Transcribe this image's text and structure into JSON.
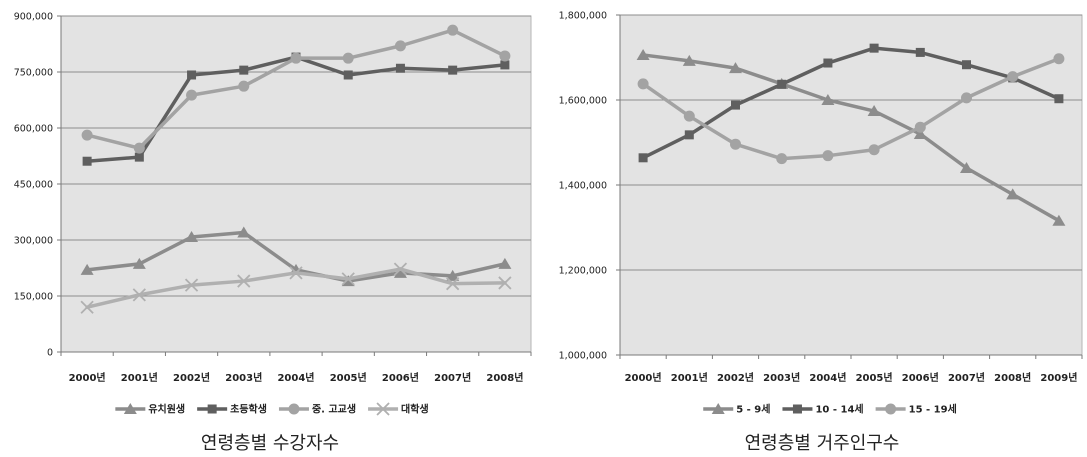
{
  "chart_data": [
    {
      "type": "line",
      "title": "연령층별 수강자수",
      "categories": [
        "2000년",
        "2001년",
        "2002년",
        "2003년",
        "2004년",
        "2005년",
        "2006년",
        "2007년",
        "2008년"
      ],
      "yticks": [
        "0",
        "150,000",
        "300,000",
        "450,000",
        "600,000",
        "750,000",
        "900,000"
      ],
      "ylim": [
        0,
        900000
      ],
      "grid": true,
      "legend": "bottom",
      "series": [
        {
          "name": "유치원생",
          "marker": "triangle",
          "color": "#8c8c8c",
          "values": [
            220000,
            236000,
            308000,
            320000,
            220000,
            190000,
            212000,
            204000,
            236000
          ]
        },
        {
          "name": "초등학생",
          "marker": "square",
          "color": "#5f5f5f",
          "values": [
            511000,
            522000,
            742000,
            755000,
            790000,
            742000,
            760000,
            755000,
            769000
          ]
        },
        {
          "name": "중. 고교생",
          "marker": "circle",
          "color": "#a3a3a3",
          "values": [
            581000,
            546000,
            688000,
            712000,
            787000,
            787000,
            820000,
            862000,
            793000
          ]
        },
        {
          "name": "대학생",
          "marker": "x",
          "color": "#b0b0b0",
          "values": [
            120000,
            153000,
            179000,
            190000,
            212000,
            196000,
            222000,
            183000,
            185000
          ]
        }
      ]
    },
    {
      "type": "line",
      "title": "연령층별 거주인구수",
      "categories": [
        "2000년",
        "2001년",
        "2002년",
        "2003년",
        "2004년",
        "2005년",
        "2006년",
        "2007년",
        "2008년",
        "2009년"
      ],
      "yticks": [
        "1,000,000",
        "1,200,000",
        "1,400,000",
        "1,600,000",
        "1,800,000"
      ],
      "ylim": [
        1000000,
        1800000
      ],
      "grid": true,
      "legend": "bottom",
      "series": [
        {
          "name": "5 - 9세",
          "marker": "triangle",
          "color": "#8c8c8c",
          "values": [
            1706000,
            1692000,
            1675000,
            1638000,
            1600000,
            1574000,
            1520000,
            1440000,
            1378000,
            1316000
          ]
        },
        {
          "name": "10 - 14세",
          "marker": "square",
          "color": "#5f5f5f",
          "values": [
            1464000,
            1518000,
            1588000,
            1637000,
            1687000,
            1722000,
            1712000,
            1683000,
            1652000,
            1603000
          ]
        },
        {
          "name": "15 - 19세",
          "marker": "circle",
          "color": "#a3a3a3",
          "values": [
            1638000,
            1562000,
            1496000,
            1462000,
            1469000,
            1483000,
            1536000,
            1605000,
            1655000,
            1697000
          ]
        }
      ]
    }
  ]
}
